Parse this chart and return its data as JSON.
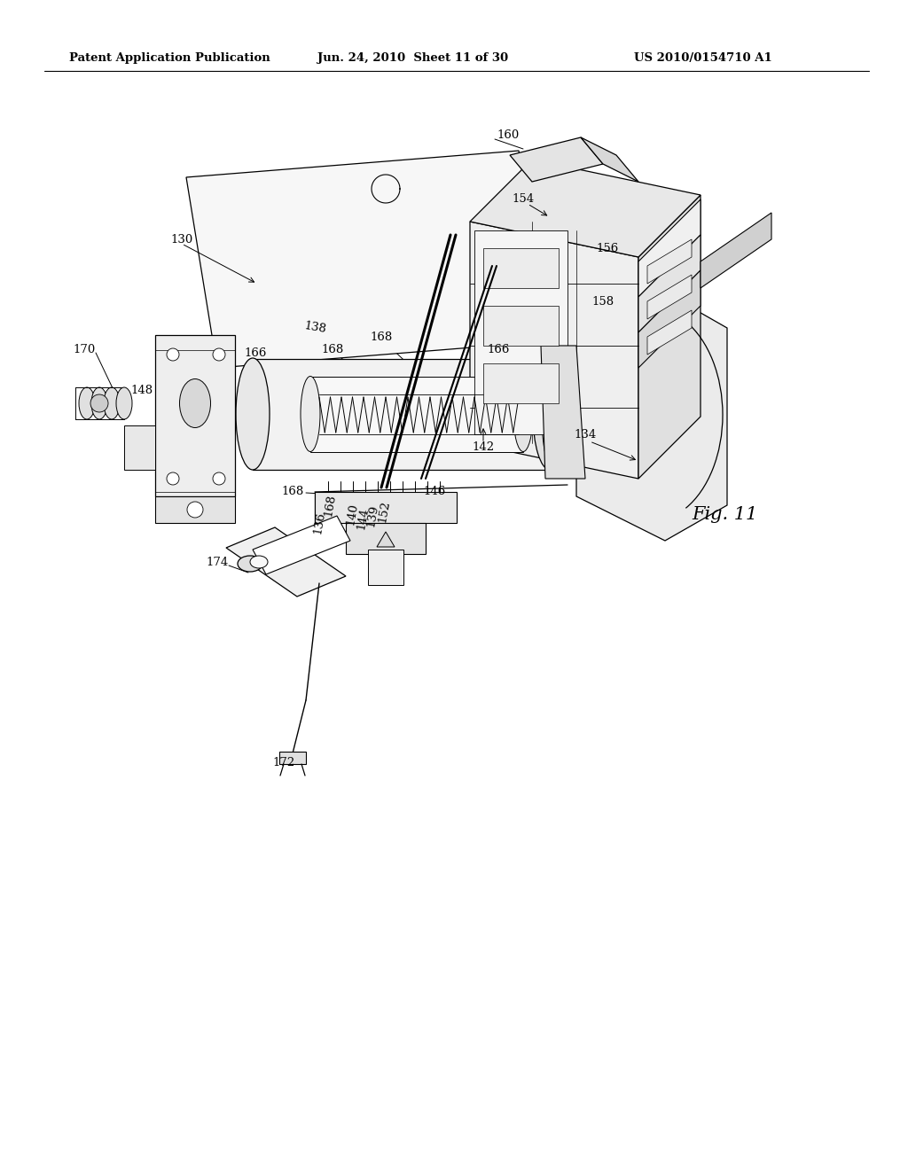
{
  "bg_color": "#ffffff",
  "header_text": "Patent Application Publication",
  "header_date": "Jun. 24, 2010  Sheet 11 of 30",
  "header_patent": "US 2010/0154710 A1",
  "fig_label": "Fig. 11",
  "line_color": "#000000",
  "line_width": 0.8,
  "page_width": 10.24,
  "page_height": 13.2,
  "dpi": 100
}
